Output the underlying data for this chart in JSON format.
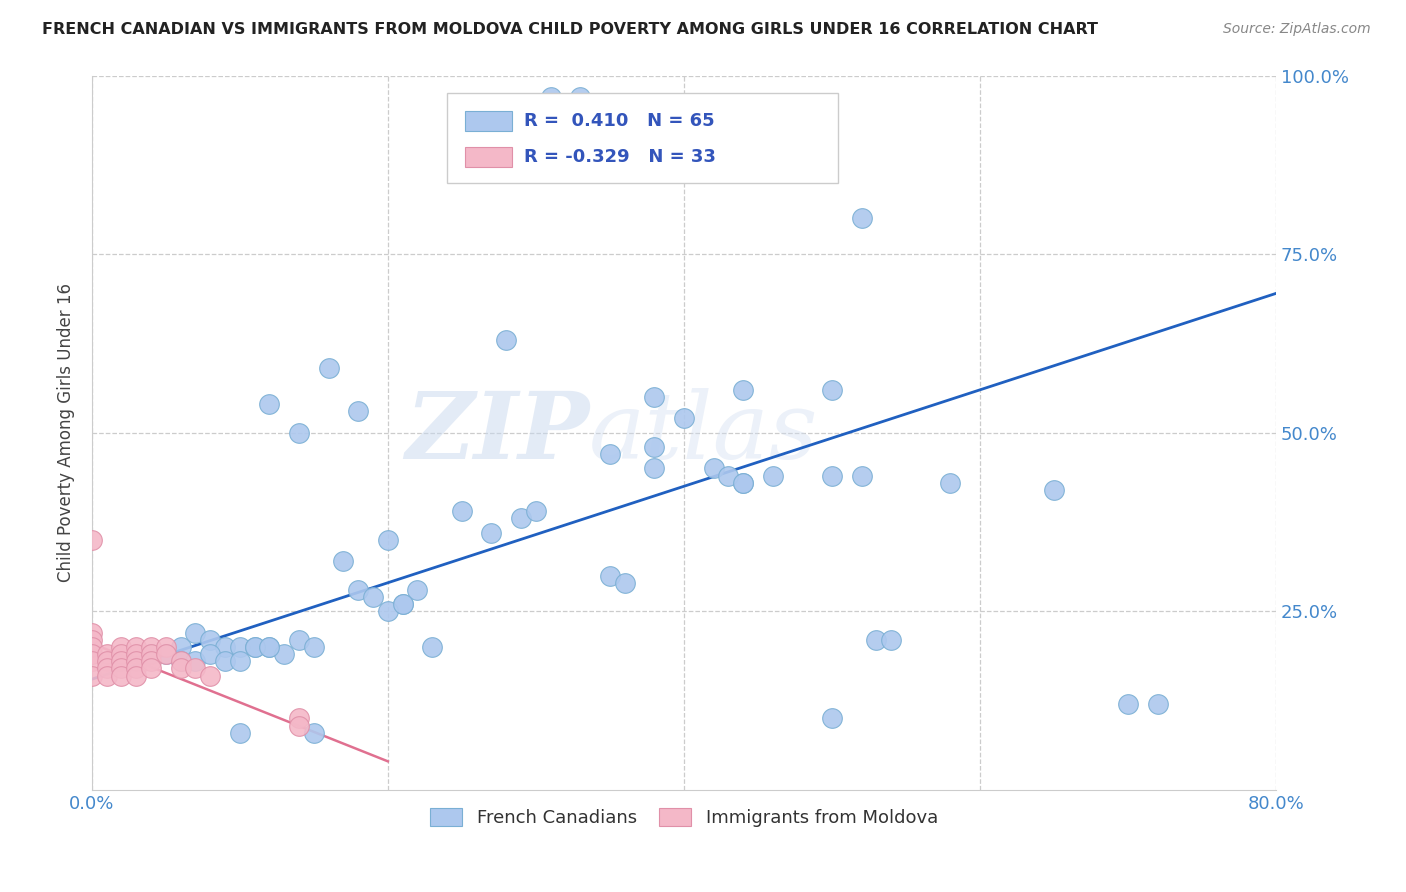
{
  "title": "FRENCH CANADIAN VS IMMIGRANTS FROM MOLDOVA CHILD POVERTY AMONG GIRLS UNDER 16 CORRELATION CHART",
  "source": "Source: ZipAtlas.com",
  "ylabel": "Child Poverty Among Girls Under 16",
  "r_blue": 0.41,
  "n_blue": 65,
  "r_pink": -0.329,
  "n_pink": 33,
  "legend_label_blue": "French Canadians",
  "legend_label_pink": "Immigrants from Moldova",
  "xlim": [
    0.0,
    0.8
  ],
  "ylim": [
    0.0,
    1.0
  ],
  "blue_color": "#adc8ee",
  "blue_edge": "#7aafd4",
  "pink_color": "#f4b8c8",
  "pink_edge": "#e090a8",
  "trend_blue": "#2060c0",
  "trend_pink": "#e07090",
  "watermark_zip": "ZIP",
  "watermark_atlas": "atlas",
  "blue_x": [
    0.31,
    0.33,
    0.28,
    0.35,
    0.38,
    0.4,
    0.44,
    0.5,
    0.52,
    0.38,
    0.42,
    0.44,
    0.5,
    0.52,
    0.58,
    0.65,
    0.12,
    0.14,
    0.16,
    0.18,
    0.06,
    0.07,
    0.08,
    0.09,
    0.1,
    0.11,
    0.12,
    0.13,
    0.14,
    0.15,
    0.04,
    0.05,
    0.06,
    0.07,
    0.08,
    0.09,
    0.1,
    0.11,
    0.12,
    0.17,
    0.18,
    0.19,
    0.2,
    0.21,
    0.22,
    0.23,
    0.35,
    0.36,
    0.53,
    0.54,
    0.7,
    0.72,
    0.25,
    0.27,
    0.29,
    0.43,
    0.44,
    0.46,
    0.2,
    0.21,
    0.1,
    0.3,
    0.38,
    0.5,
    0.15
  ],
  "blue_y": [
    0.97,
    0.97,
    0.63,
    0.47,
    0.55,
    0.52,
    0.56,
    0.56,
    0.8,
    0.45,
    0.45,
    0.43,
    0.44,
    0.44,
    0.43,
    0.42,
    0.54,
    0.5,
    0.59,
    0.53,
    0.2,
    0.22,
    0.21,
    0.2,
    0.2,
    0.2,
    0.2,
    0.19,
    0.21,
    0.2,
    0.19,
    0.19,
    0.18,
    0.18,
    0.19,
    0.18,
    0.18,
    0.2,
    0.2,
    0.32,
    0.28,
    0.27,
    0.35,
    0.26,
    0.28,
    0.2,
    0.3,
    0.29,
    0.21,
    0.21,
    0.12,
    0.12,
    0.39,
    0.36,
    0.38,
    0.44,
    0.43,
    0.44,
    0.25,
    0.26,
    0.08,
    0.39,
    0.48,
    0.1,
    0.08
  ],
  "pink_x": [
    0.0,
    0.0,
    0.0,
    0.0,
    0.0,
    0.0,
    0.01,
    0.01,
    0.01,
    0.01,
    0.02,
    0.02,
    0.02,
    0.02,
    0.02,
    0.03,
    0.03,
    0.03,
    0.03,
    0.03,
    0.04,
    0.04,
    0.04,
    0.04,
    0.05,
    0.05,
    0.06,
    0.06,
    0.07,
    0.08,
    0.14,
    0.14,
    0.0
  ],
  "pink_y": [
    0.22,
    0.21,
    0.2,
    0.19,
    0.18,
    0.16,
    0.19,
    0.18,
    0.17,
    0.16,
    0.2,
    0.19,
    0.18,
    0.17,
    0.16,
    0.2,
    0.19,
    0.18,
    0.17,
    0.16,
    0.2,
    0.19,
    0.18,
    0.17,
    0.2,
    0.19,
    0.18,
    0.17,
    0.17,
    0.16,
    0.1,
    0.09,
    0.35
  ],
  "trend_blue_x0": 0.0,
  "trend_blue_y0": 0.155,
  "trend_blue_x1": 0.8,
  "trend_blue_y1": 0.695,
  "trend_pink_x0": 0.0,
  "trend_pink_y0": 0.205,
  "trend_pink_x1": 0.2,
  "trend_pink_y1": 0.04
}
